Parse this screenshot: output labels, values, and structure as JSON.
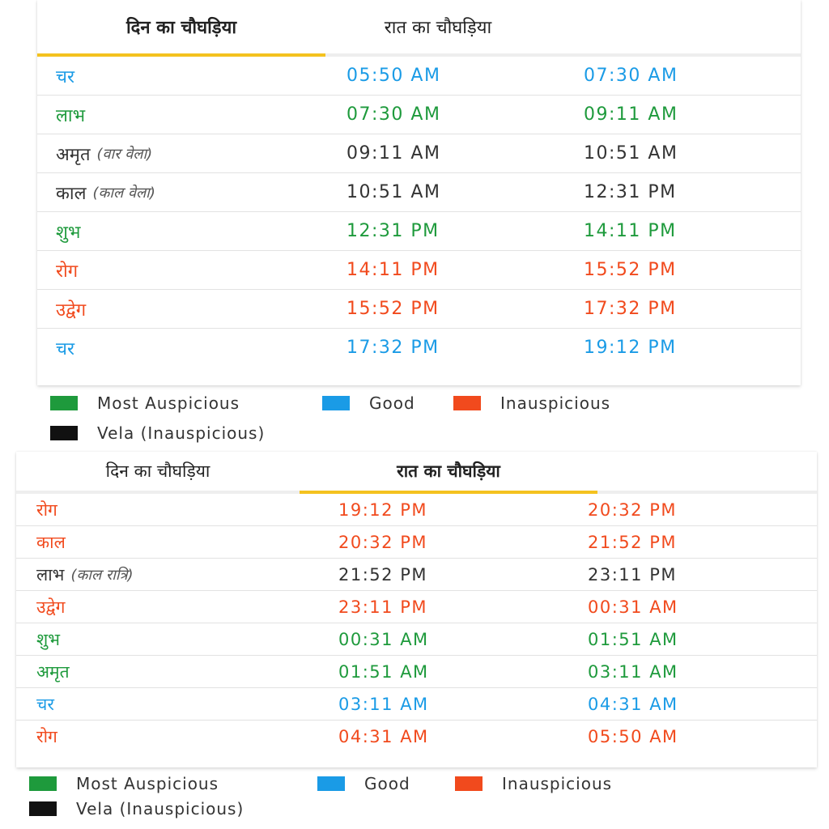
{
  "colors": {
    "most_auspicious": "#1e9a3c",
    "good": "#1a9be6",
    "inauspicious": "#f14a1d",
    "vela": "#333333",
    "tab_underline": "#f4c21f"
  },
  "day_panel": {
    "tabs": [
      {
        "label": "दिन का चौघड़िया",
        "active": true
      },
      {
        "label": "रात का चौघड़िया",
        "active": false
      }
    ],
    "rows": [
      {
        "name": "चर",
        "note": "",
        "start": "05:50 AM",
        "end": "07:30 AM",
        "type": "good"
      },
      {
        "name": "लाभ",
        "note": "",
        "start": "07:30 AM",
        "end": "09:11 AM",
        "type": "most_auspicious"
      },
      {
        "name": "अमृत",
        "note": "(वार वेला)",
        "start": "09:11 AM",
        "end": "10:51 AM",
        "type": "vela"
      },
      {
        "name": "काल",
        "note": "(काल वेला)",
        "start": "10:51 AM",
        "end": "12:31 PM",
        "type": "vela"
      },
      {
        "name": "शुभ",
        "note": "",
        "start": "12:31 PM",
        "end": "14:11 PM",
        "type": "most_auspicious"
      },
      {
        "name": "रोग",
        "note": "",
        "start": "14:11 PM",
        "end": "15:52 PM",
        "type": "inauspicious"
      },
      {
        "name": "उद्वेग",
        "note": "",
        "start": "15:52 PM",
        "end": "17:32 PM",
        "type": "inauspicious"
      },
      {
        "name": "चर",
        "note": "",
        "start": "17:32 PM",
        "end": "19:12 PM",
        "type": "good"
      }
    ]
  },
  "night_panel": {
    "tabs": [
      {
        "label": "दिन का चौघड़िया",
        "active": false
      },
      {
        "label": "रात का चौघड़िया",
        "active": true
      }
    ],
    "rows": [
      {
        "name": "रोग",
        "note": "",
        "start": "19:12 PM",
        "end": "20:32 PM",
        "type": "inauspicious"
      },
      {
        "name": "काल",
        "note": "",
        "start": "20:32 PM",
        "end": "21:52 PM",
        "type": "inauspicious"
      },
      {
        "name": "लाभ",
        "note": "(काल रात्रि)",
        "start": "21:52 PM",
        "end": "23:11 PM",
        "type": "vela"
      },
      {
        "name": "उद्वेग",
        "note": "",
        "start": "23:11 PM",
        "end": "00:31 AM",
        "type": "inauspicious"
      },
      {
        "name": "शुभ",
        "note": "",
        "start": "00:31 AM",
        "end": "01:51 AM",
        "type": "most_auspicious"
      },
      {
        "name": "अमृत",
        "note": "",
        "start": "01:51 AM",
        "end": "03:11 AM",
        "type": "most_auspicious"
      },
      {
        "name": "चर",
        "note": "",
        "start": "03:11 AM",
        "end": "04:31 AM",
        "type": "good"
      },
      {
        "name": "रोग",
        "note": "",
        "start": "04:31 AM",
        "end": "05:50 AM",
        "type": "inauspicious"
      }
    ]
  },
  "legend": {
    "most_auspicious": "Most Auspicious",
    "good": "Good",
    "inauspicious": "Inauspicious",
    "vela": "Vela (Inauspicious)"
  }
}
